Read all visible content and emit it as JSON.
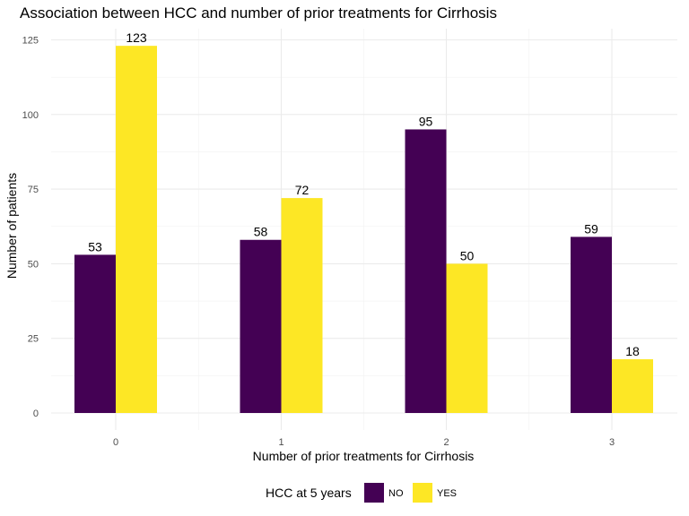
{
  "chart_data": {
    "type": "bar",
    "title": "Association between HCC and number of prior treatments for Cirrhosis",
    "xlabel": "Number of prior treatments for Cirrhosis",
    "ylabel": "Number of patients",
    "categories": [
      "0",
      "1",
      "2",
      "3"
    ],
    "series": [
      {
        "name": "NO",
        "color": "#440154",
        "values": [
          53,
          58,
          95,
          59
        ]
      },
      {
        "name": "YES",
        "color": "#FDE725",
        "values": [
          123,
          72,
          50,
          18
        ]
      }
    ],
    "ylim": [
      0,
      130
    ],
    "yticks": [
      0,
      25,
      50,
      75,
      100,
      125
    ],
    "grid": true,
    "legend": {
      "title": "HCC at 5 years",
      "position": "bottom"
    }
  }
}
